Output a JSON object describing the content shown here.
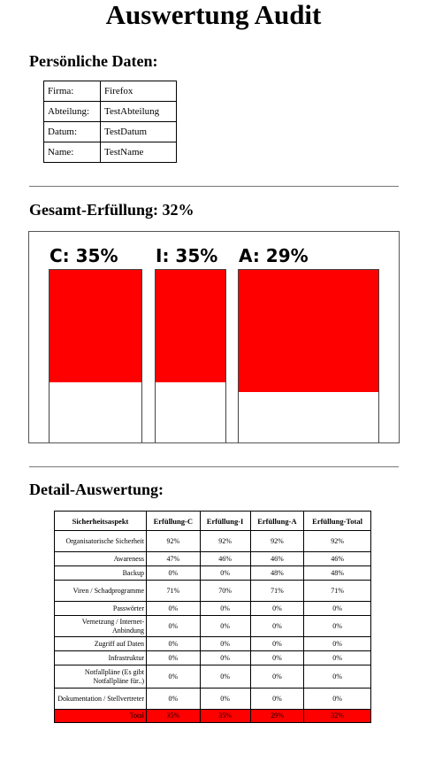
{
  "title": "Auswertung Audit",
  "personal": {
    "heading": "Persönliche Daten:",
    "rows": [
      {
        "label": "Firma:",
        "value": "Firefox"
      },
      {
        "label": "Abteilung:",
        "value": "TestAbteilung"
      },
      {
        "label": "Datum:",
        "value": "TestDatum"
      },
      {
        "label": "Name:",
        "value": "TestName"
      }
    ]
  },
  "overall": {
    "heading": "Gesamt-Erfüllung: 32%"
  },
  "chart_data": {
    "type": "bar",
    "categories": [
      "C",
      "I",
      "A"
    ],
    "values": [
      35,
      35,
      29
    ],
    "labels": [
      "C: 35%",
      "I: 35%",
      "A: 29%"
    ],
    "ylim": [
      0,
      100
    ],
    "fill_color": "#ff0000"
  },
  "detail": {
    "heading": "Detail-Auswertung:",
    "columns": [
      "Sicherheitsaspekt",
      "Erfüllung-C",
      "Erfüllung-I",
      "Erfüllung-A",
      "Erfüllung-Total"
    ],
    "rows": [
      {
        "aspect": "Organisatorische Sicherheit",
        "c": "92%",
        "i": "92%",
        "a": "92%",
        "total": "92%"
      },
      {
        "aspect": "Awareness",
        "c": "47%",
        "i": "46%",
        "a": "46%",
        "total": "46%"
      },
      {
        "aspect": "Backup",
        "c": "0%",
        "i": "0%",
        "a": "48%",
        "total": "48%"
      },
      {
        "aspect": "Viren / Schadprogramme",
        "c": "71%",
        "i": "70%",
        "a": "71%",
        "total": "71%"
      },
      {
        "aspect": "Passwörter",
        "c": "0%",
        "i": "0%",
        "a": "0%",
        "total": "0%"
      },
      {
        "aspect": "Vernetzung / Internet-Anbindung",
        "c": "0%",
        "i": "0%",
        "a": "0%",
        "total": "0%"
      },
      {
        "aspect": "Zugriff auf Daten",
        "c": "0%",
        "i": "0%",
        "a": "0%",
        "total": "0%"
      },
      {
        "aspect": "Infrastruktur",
        "c": "0%",
        "i": "0%",
        "a": "0%",
        "total": "0%"
      },
      {
        "aspect": "Notfallpläne (Es gibt Notfallpläne für..)",
        "c": "0%",
        "i": "0%",
        "a": "0%",
        "total": "0%"
      },
      {
        "aspect": "Dokumentation / Stellvertreter",
        "c": "0%",
        "i": "0%",
        "a": "0%",
        "total": "0%"
      }
    ],
    "total_row": {
      "aspect": "Total",
      "c": "35%",
      "i": "35%",
      "a": "29%",
      "total": "32%"
    },
    "total_color": "#ff0000"
  }
}
